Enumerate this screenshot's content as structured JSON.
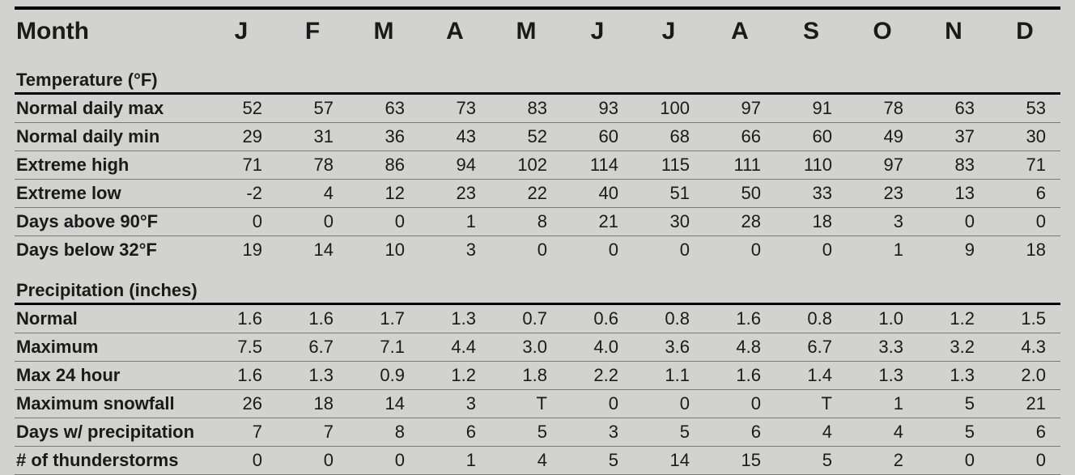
{
  "header": {
    "title": "Month",
    "months": [
      "J",
      "F",
      "M",
      "A",
      "M",
      "J",
      "J",
      "A",
      "S",
      "O",
      "N",
      "D"
    ]
  },
  "sections": [
    {
      "title": "Temperature (°F)",
      "rows": [
        {
          "label": "Normal daily max",
          "values": [
            "52",
            "57",
            "63",
            "73",
            "83",
            "93",
            "100",
            "97",
            "91",
            "78",
            "63",
            "53"
          ]
        },
        {
          "label": "Normal daily min",
          "values": [
            "29",
            "31",
            "36",
            "43",
            "52",
            "60",
            "68",
            "66",
            "60",
            "49",
            "37",
            "30"
          ]
        },
        {
          "label": "Extreme high",
          "values": [
            "71",
            "78",
            "86",
            "94",
            "102",
            "114",
            "115",
            "111",
            "110",
            "97",
            "83",
            "71"
          ]
        },
        {
          "label": "Extreme low",
          "values": [
            "-2",
            "4",
            "12",
            "23",
            "22",
            "40",
            "51",
            "50",
            "33",
            "23",
            "13",
            "6"
          ]
        },
        {
          "label": "Days above 90°F",
          "values": [
            "0",
            "0",
            "0",
            "1",
            "8",
            "21",
            "30",
            "28",
            "18",
            "3",
            "0",
            "0"
          ]
        },
        {
          "label": "Days below 32°F",
          "values": [
            "19",
            "14",
            "10",
            "3",
            "0",
            "0",
            "0",
            "0",
            "0",
            "1",
            "9",
            "18"
          ]
        }
      ]
    },
    {
      "title": "Precipitation (inches)",
      "rows": [
        {
          "label": "Normal",
          "values": [
            "1.6",
            "1.6",
            "1.7",
            "1.3",
            "0.7",
            "0.6",
            "0.8",
            "1.6",
            "0.8",
            "1.0",
            "1.2",
            "1.5"
          ]
        },
        {
          "label": "Maximum",
          "values": [
            "7.5",
            "6.7",
            "7.1",
            "4.4",
            "3.0",
            "4.0",
            "3.6",
            "4.8",
            "6.7",
            "3.3",
            "3.2",
            "4.3"
          ]
        },
        {
          "label": "Max 24 hour",
          "values": [
            "1.6",
            "1.3",
            "0.9",
            "1.2",
            "1.8",
            "2.2",
            "1.1",
            "1.6",
            "1.4",
            "1.3",
            "1.3",
            "2.0"
          ]
        },
        {
          "label": "Maximum snowfall",
          "values": [
            "26",
            "18",
            "14",
            "3",
            "T",
            "0",
            "0",
            "0",
            "T",
            "1",
            "5",
            "21"
          ]
        },
        {
          "label": "Days w/ precipitation",
          "values": [
            "7",
            "7",
            "8",
            "6",
            "5",
            "3",
            "5",
            "6",
            "4",
            "4",
            "5",
            "6"
          ]
        },
        {
          "label": "# of thunderstorms",
          "values": [
            "0",
            "0",
            "0",
            "1",
            "4",
            "5",
            "14",
            "15",
            "5",
            "2",
            "0",
            "0"
          ]
        }
      ]
    }
  ],
  "style": {
    "background_color": "#d2d2d1",
    "text_color": "#1a1a1a",
    "heavy_rule_color": "#000000",
    "thin_rule_color": "#7a7a78",
    "header_fontsize_pt": 22,
    "section_fontsize_pt": 16,
    "body_fontsize_pt": 16,
    "font_family": "Myriad Pro / sans-serif"
  }
}
